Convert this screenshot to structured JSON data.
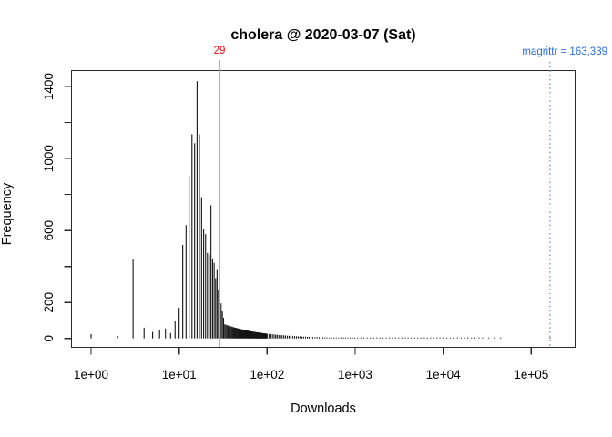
{
  "title": "cholera @ 2020-03-07 (Sat)",
  "annotations": {
    "threshold": {
      "label": "29",
      "value": 29,
      "text_color": "#e81414",
      "line_color": "#ff8d8d"
    },
    "magrittr": {
      "label": "magrittr = 163,339",
      "value": 163339,
      "text_color": "#2b6fe0",
      "line_color": "#5c9dff",
      "line_style": "dotted"
    }
  },
  "colors": {
    "bar": "#141414",
    "axis": "#2a2a2a",
    "tick_text": "#000000"
  },
  "chart_data": {
    "type": "bar",
    "title": "cholera @ 2020-03-07 (Sat)",
    "xlabel": "Downloads",
    "ylabel": "Frequency",
    "x_scale": "log10",
    "xlim": [
      1,
      100000
    ],
    "ylim": [
      0,
      1430
    ],
    "grid": false,
    "legend": "none",
    "x_ticks": [
      {
        "value": 1,
        "label": "1e+00"
      },
      {
        "value": 10,
        "label": "1e+01"
      },
      {
        "value": 100,
        "label": "1e+02"
      },
      {
        "value": 1000,
        "label": "1e+03"
      },
      {
        "value": 10000,
        "label": "1e+04"
      },
      {
        "value": 100000,
        "label": "1e+05"
      }
    ],
    "y_ticks": [
      {
        "value": 0,
        "label": "0"
      },
      {
        "value": 200,
        "label": "200"
      },
      {
        "value": 400,
        "label": ""
      },
      {
        "value": 600,
        "label": "600"
      },
      {
        "value": 800,
        "label": ""
      },
      {
        "value": 1000,
        "label": "1000"
      },
      {
        "value": 1200,
        "label": ""
      },
      {
        "value": 1400,
        "label": "1400"
      }
    ],
    "bars": [
      [
        1,
        25
      ],
      [
        2,
        14
      ],
      [
        3,
        440
      ],
      [
        4,
        60
      ],
      [
        5,
        36
      ],
      [
        6,
        46
      ],
      [
        7,
        55
      ],
      [
        8,
        30
      ],
      [
        9,
        95
      ],
      [
        10,
        170
      ],
      [
        11,
        520
      ],
      [
        12,
        630
      ],
      [
        13,
        905
      ],
      [
        14,
        1135
      ],
      [
        15,
        1085
      ],
      [
        16,
        1430
      ],
      [
        17,
        1135
      ],
      [
        18,
        785
      ],
      [
        19,
        610
      ],
      [
        20,
        580
      ],
      [
        21,
        475
      ],
      [
        22,
        465
      ],
      [
        23,
        740
      ],
      [
        24,
        445
      ],
      [
        25,
        420
      ],
      [
        26,
        335
      ],
      [
        27,
        380
      ],
      [
        28,
        270
      ],
      [
        29,
        225
      ],
      [
        30,
        195
      ],
      [
        31,
        150
      ],
      [
        32,
        115
      ],
      [
        33,
        79
      ],
      [
        34,
        76
      ],
      [
        35,
        74
      ],
      [
        36,
        72
      ],
      [
        37,
        70
      ],
      [
        38,
        68
      ],
      [
        39,
        67
      ],
      [
        40,
        65
      ],
      [
        41,
        63
      ],
      [
        42,
        62
      ],
      [
        43,
        60
      ],
      [
        44,
        59
      ],
      [
        45,
        58
      ],
      [
        46,
        57
      ],
      [
        47,
        55
      ],
      [
        48,
        54
      ],
      [
        49,
        53
      ],
      [
        50,
        52
      ],
      [
        51,
        51
      ],
      [
        52,
        50
      ],
      [
        53,
        49
      ],
      [
        54,
        48
      ],
      [
        55,
        47
      ],
      [
        56,
        46
      ],
      [
        57,
        46
      ],
      [
        58,
        45
      ],
      [
        59,
        44
      ],
      [
        60,
        43
      ],
      [
        61,
        43
      ],
      [
        62,
        42
      ],
      [
        63,
        41
      ],
      [
        64,
        41
      ],
      [
        65,
        40
      ],
      [
        66,
        39
      ],
      [
        67,
        39
      ],
      [
        68,
        38
      ],
      [
        69,
        38
      ],
      [
        70,
        37
      ],
      [
        71,
        37
      ],
      [
        72,
        36
      ],
      [
        73,
        36
      ],
      [
        74,
        35
      ],
      [
        75,
        35
      ],
      [
        76,
        34
      ],
      [
        77,
        34
      ],
      [
        78,
        33
      ],
      [
        79,
        33
      ],
      [
        80,
        33
      ],
      [
        81,
        32
      ],
      [
        82,
        32
      ],
      [
        83,
        31
      ],
      [
        84,
        31
      ],
      [
        85,
        31
      ],
      [
        86,
        30
      ],
      [
        87,
        30
      ],
      [
        88,
        30
      ],
      [
        89,
        29
      ],
      [
        90,
        29
      ],
      [
        91,
        29
      ],
      [
        92,
        28
      ],
      [
        93,
        28
      ],
      [
        94,
        28
      ],
      [
        95,
        27
      ],
      [
        96,
        27
      ],
      [
        97,
        27
      ],
      [
        98,
        27
      ],
      [
        99,
        26
      ],
      [
        100,
        26
      ],
      [
        105,
        25
      ],
      [
        110,
        24
      ],
      [
        115,
        23
      ],
      [
        120,
        22
      ],
      [
        125,
        21
      ],
      [
        130,
        20
      ],
      [
        136,
        19
      ],
      [
        142,
        18
      ],
      [
        148,
        18
      ],
      [
        155,
        17
      ],
      [
        162,
        16
      ],
      [
        170,
        15
      ],
      [
        178,
        15
      ],
      [
        186,
        14
      ],
      [
        195,
        13
      ],
      [
        205,
        13
      ],
      [
        215,
        12
      ],
      [
        225,
        12
      ],
      [
        236,
        11
      ],
      [
        248,
        10
      ],
      [
        260,
        10
      ],
      [
        273,
        10
      ],
      [
        287,
        9
      ],
      [
        300,
        9
      ],
      [
        315,
        8
      ],
      [
        330,
        8
      ],
      [
        350,
        7
      ],
      [
        370,
        7
      ],
      [
        390,
        7
      ],
      [
        410,
        6
      ],
      [
        430,
        6
      ],
      [
        455,
        6
      ],
      [
        480,
        5
      ],
      [
        510,
        5
      ],
      [
        540,
        5
      ],
      [
        575,
        5
      ],
      [
        610,
        4
      ],
      [
        650,
        4
      ],
      [
        690,
        4
      ],
      [
        735,
        4
      ],
      [
        780,
        3
      ],
      [
        830,
        3
      ],
      [
        880,
        3
      ],
      [
        935,
        3
      ],
      [
        990,
        3
      ],
      [
        1070,
        2
      ],
      [
        1160,
        3
      ],
      [
        1260,
        2
      ],
      [
        1370,
        2
      ],
      [
        1490,
        2
      ],
      [
        1620,
        2
      ],
      [
        1760,
        1
      ],
      [
        1910,
        2
      ],
      [
        2070,
        1
      ],
      [
        2250,
        2
      ],
      [
        2440,
        1
      ],
      [
        2650,
        2
      ],
      [
        2880,
        1
      ],
      [
        3130,
        1
      ],
      [
        3400,
        2
      ],
      [
        3700,
        1
      ],
      [
        4000,
        1
      ],
      [
        4350,
        1
      ],
      [
        4750,
        1
      ],
      [
        5150,
        1
      ],
      [
        5600,
        2
      ],
      [
        6100,
        1
      ],
      [
        6600,
        1
      ],
      [
        7200,
        1
      ],
      [
        7800,
        1
      ],
      [
        8500,
        1
      ],
      [
        9200,
        1
      ],
      [
        10000,
        1
      ],
      [
        11000,
        1
      ],
      [
        12000,
        1
      ],
      [
        13000,
        1
      ],
      [
        14500,
        1
      ],
      [
        16000,
        1
      ],
      [
        17500,
        1
      ],
      [
        19000,
        1
      ],
      [
        21000,
        1
      ],
      [
        23000,
        1
      ],
      [
        25500,
        1
      ],
      [
        28000,
        1
      ],
      [
        33000,
        1
      ],
      [
        38000,
        1
      ],
      [
        45000,
        1
      ],
      [
        163339,
        2
      ]
    ],
    "annotations": [
      {
        "type": "vline",
        "x": 29,
        "label": "29",
        "color": "red"
      },
      {
        "type": "vline",
        "x": 163339,
        "label": "magrittr = 163,339",
        "color": "blue",
        "style": "dotted"
      }
    ]
  }
}
